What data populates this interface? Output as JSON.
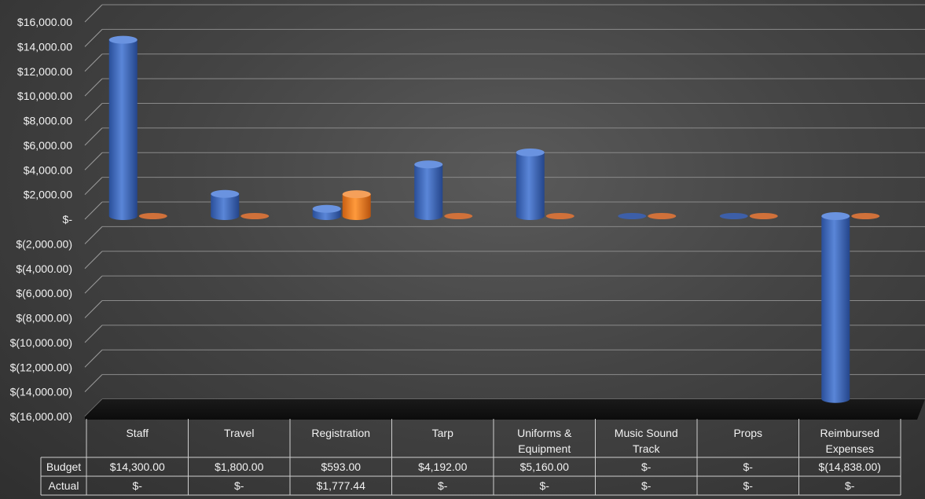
{
  "chart_data": {
    "type": "bar",
    "subtype": "3d-cylinder",
    "categories": [
      [
        "Staff"
      ],
      [
        "Travel"
      ],
      [
        "Registration"
      ],
      [
        "Tarp"
      ],
      [
        "Uniforms &",
        "Equipment"
      ],
      [
        "Music Sound",
        "Track"
      ],
      [
        "Props"
      ],
      [
        "Reimbursed",
        "Expenses"
      ]
    ],
    "series": [
      {
        "name": "Budget",
        "color": "#4472C4",
        "values": [
          14300,
          1800,
          593,
          4192,
          5160,
          0,
          0,
          -14838
        ],
        "labels": [
          "$14,300.00",
          "$1,800.00",
          "$593.00",
          "$4,192.00",
          "$5,160.00",
          "$-",
          "$-",
          "$(14,838.00)"
        ]
      },
      {
        "name": "Actual",
        "color": "#ED7D31",
        "values": [
          0,
          0,
          1777.44,
          0,
          0,
          0,
          0,
          0
        ],
        "labels": [
          "$-",
          "$-",
          "$1,777.44",
          "$-",
          "$-",
          "$-",
          "$-",
          "$-"
        ]
      }
    ],
    "ylim": [
      -16000,
      16000
    ],
    "yticks": [
      16000,
      14000,
      12000,
      10000,
      8000,
      6000,
      4000,
      2000,
      0,
      -2000,
      -4000,
      -6000,
      -8000,
      -10000,
      -12000,
      -14000,
      -16000
    ],
    "ytick_labels": [
      "$16,000.00",
      "$14,000.00",
      "$12,000.00",
      "$10,000.00",
      "$8,000.00",
      "$6,000.00",
      "$4,000.00",
      "$2,000.00",
      "$-",
      "$(2,000.00)",
      "$(4,000.00)",
      "$(6,000.00)",
      "$(8,000.00)",
      "$(10,000.00)",
      "$(12,000.00)",
      "$(14,000.00)",
      "$(16,000.00)"
    ],
    "grid": true,
    "legend": "data-table",
    "background": "#404040"
  }
}
